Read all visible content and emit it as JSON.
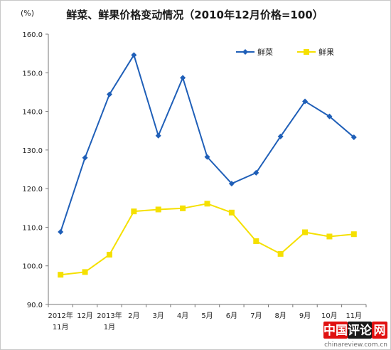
{
  "chart_data": {
    "type": "line",
    "title": "鲜菜、鲜果价格变动情况（2010年12月价格=100）",
    "unit_label": "(%)",
    "ylim": [
      90,
      160
    ],
    "yticks": [
      "90.0",
      "100.0",
      "110.0",
      "120.0",
      "130.0",
      "140.0",
      "150.0",
      "160.0"
    ],
    "categories": [
      [
        "2012年",
        "11月"
      ],
      [
        "12月"
      ],
      [
        "2013年",
        "1月"
      ],
      [
        "2月"
      ],
      [
        "3月"
      ],
      [
        "4月"
      ],
      [
        "5月"
      ],
      [
        "6月"
      ],
      [
        "7月"
      ],
      [
        "8月"
      ],
      [
        "9月"
      ],
      [
        "10月"
      ],
      [
        "11月"
      ]
    ],
    "series": [
      {
        "name": "鲜菜",
        "color": "#1f5fb8",
        "marker": "diamond",
        "values": [
          108.8,
          128.0,
          144.4,
          154.6,
          133.7,
          148.7,
          128.2,
          121.3,
          124.1,
          133.5,
          142.6,
          138.7,
          133.3
        ]
      },
      {
        "name": "鲜果",
        "color": "#f5e000",
        "marker": "square",
        "values": [
          97.7,
          98.4,
          102.9,
          114.1,
          114.6,
          114.9,
          116.1,
          113.8,
          106.4,
          103.1,
          108.7,
          107.6,
          108.2
        ]
      }
    ],
    "legend_position": "top-right",
    "grid": false
  },
  "watermark": {
    "parts": [
      "中国",
      "评论",
      "网"
    ],
    "colors": [
      "#e01010",
      "#1a1a1a",
      "#e01010"
    ],
    "url": "chinareview.com.cn"
  }
}
